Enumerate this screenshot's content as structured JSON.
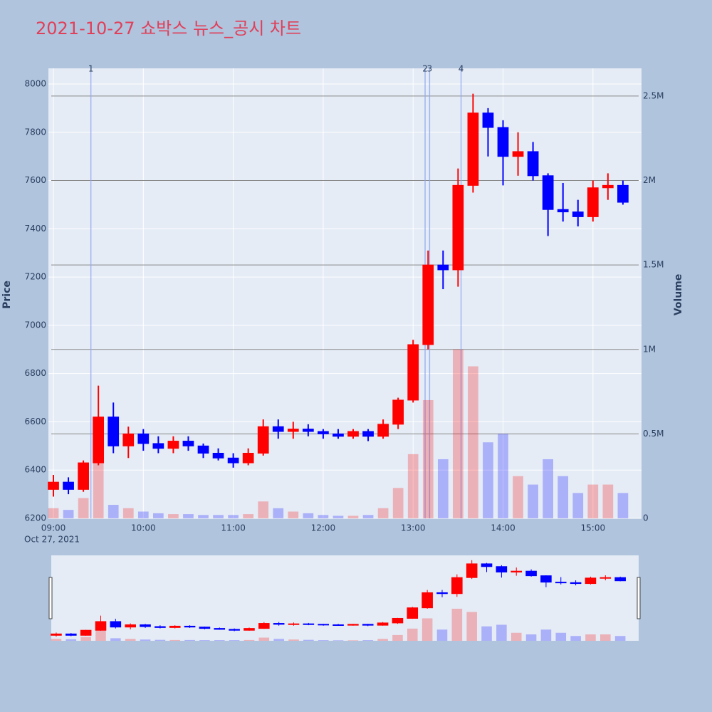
{
  "chart_data": {
    "type": "candlestick",
    "title": "2021-10-27 쇼박스 뉴스_공시 차트",
    "x": [
      "2021-10-27 09:00",
      "2021-10-27 09:10",
      "2021-10-27 09:20",
      "2021-10-27 09:30",
      "2021-10-27 09:40",
      "2021-10-27 09:50",
      "2021-10-27 10:00",
      "2021-10-27 10:10",
      "2021-10-27 10:20",
      "2021-10-27 10:30",
      "2021-10-27 10:40",
      "2021-10-27 10:50",
      "2021-10-27 11:00",
      "2021-10-27 11:10",
      "2021-10-27 11:20",
      "2021-10-27 11:30",
      "2021-10-27 11:40",
      "2021-10-27 11:50",
      "2021-10-27 12:00",
      "2021-10-27 12:10",
      "2021-10-27 12:20",
      "2021-10-27 12:30",
      "2021-10-27 12:40",
      "2021-10-27 12:50",
      "2021-10-27 13:00",
      "2021-10-27 13:10",
      "2021-10-27 13:20",
      "2021-10-27 13:30",
      "2021-10-27 13:40",
      "2021-10-27 13:50",
      "2021-10-27 14:00",
      "2021-10-27 14:10",
      "2021-10-27 14:20",
      "2021-10-27 14:30",
      "2021-10-27 14:40",
      "2021-10-27 14:50",
      "2021-10-27 15:00",
      "2021-10-27 15:10",
      "2021-10-27 15:20"
    ],
    "open": [
      6320,
      6350,
      6320,
      6430,
      6620,
      6500,
      6550,
      6510,
      6490,
      6520,
      6500,
      6470,
      6450,
      6430,
      6470,
      6580,
      6560,
      6570,
      6560,
      6550,
      6540,
      6560,
      6540,
      6590,
      6690,
      6920,
      7250,
      7230,
      7580,
      7880,
      7820,
      7700,
      7720,
      7620,
      7480,
      7470,
      7450,
      7570,
      7580
    ],
    "high": [
      6380,
      6370,
      6440,
      6750,
      6680,
      6580,
      6570,
      6540,
      6540,
      6540,
      6510,
      6490,
      6470,
      6490,
      6610,
      6610,
      6600,
      6590,
      6570,
      6570,
      6570,
      6570,
      6610,
      6700,
      6940,
      7310,
      7310,
      7650,
      7960,
      7900,
      7850,
      7800,
      7760,
      7630,
      7590,
      7520,
      7600,
      7630,
      7600
    ],
    "low": [
      6290,
      6300,
      6310,
      6420,
      6470,
      6450,
      6480,
      6470,
      6470,
      6480,
      6450,
      6440,
      6410,
      6420,
      6460,
      6530,
      6530,
      6540,
      6530,
      6530,
      6530,
      6520,
      6530,
      6570,
      6680,
      6900,
      7150,
      7160,
      7550,
      7700,
      7580,
      7620,
      7600,
      7370,
      7430,
      7410,
      7430,
      7520,
      7500
    ],
    "close": [
      6350,
      6320,
      6430,
      6620,
      6500,
      6550,
      6510,
      6490,
      6520,
      6500,
      6470,
      6450,
      6430,
      6470,
      6580,
      6560,
      6570,
      6560,
      6550,
      6540,
      6560,
      6540,
      6590,
      6690,
      6920,
      7250,
      7230,
      7580,
      7880,
      7820,
      7700,
      7720,
      7620,
      7480,
      7470,
      7450,
      7570,
      7580,
      7510
    ],
    "volume": [
      60000,
      50000,
      120000,
      330000,
      80000,
      60000,
      40000,
      30000,
      25000,
      25000,
      20000,
      20000,
      20000,
      25000,
      100000,
      60000,
      40000,
      30000,
      20000,
      15000,
      15000,
      20000,
      60000,
      180000,
      380000,
      700000,
      350000,
      1000000,
      900000,
      450000,
      500000,
      250000,
      200000,
      350000,
      250000,
      150000,
      200000,
      200000,
      150000
    ],
    "increasing_color": "#ff0000",
    "decreasing_color": "#0000ff",
    "xlim": [
      "2021-10-27 08:56:40",
      "2021-10-27 15:32:24"
    ],
    "xticks": [
      {
        "value": "2021-10-27 09:00",
        "label": "09:00"
      },
      {
        "value": "2021-10-27 10:00",
        "label": "10:00"
      },
      {
        "value": "2021-10-27 11:00",
        "label": "11:00"
      },
      {
        "value": "2021-10-27 12:00",
        "label": "12:00"
      },
      {
        "value": "2021-10-27 13:00",
        "label": "13:00"
      },
      {
        "value": "2021-10-27 14:00",
        "label": "14:00"
      },
      {
        "value": "2021-10-27 15:00",
        "label": "15:00"
      }
    ],
    "date_label": "Oct 27, 2021",
    "ylim": [
      6200,
      8065
    ],
    "yticks": [
      6200,
      6400,
      6600,
      6800,
      7000,
      7200,
      7400,
      7600,
      7800,
      8000
    ],
    "y2lim": [
      0,
      2664000
    ],
    "y2ticks": [
      0,
      {
        "value": 500000,
        "label": "0.5M"
      },
      {
        "value": 1000000,
        "label": "1M"
      },
      {
        "value": 1500000,
        "label": "1.5M"
      },
      {
        "value": 2000000,
        "label": "2M"
      },
      {
        "value": 2500000,
        "label": "2.5M"
      }
    ],
    "y_label": "Price",
    "y2_label": "Volume",
    "annotations": [
      {
        "x": "2021-10-27 09:25",
        "text": "1"
      },
      {
        "x": "2021-10-27 13:08",
        "text": "2"
      },
      {
        "x": "2021-10-27 13:11",
        "text": "3"
      },
      {
        "x": "2021-10-27 13:32",
        "text": "4"
      }
    ],
    "grid": true,
    "rangeslider": true
  }
}
